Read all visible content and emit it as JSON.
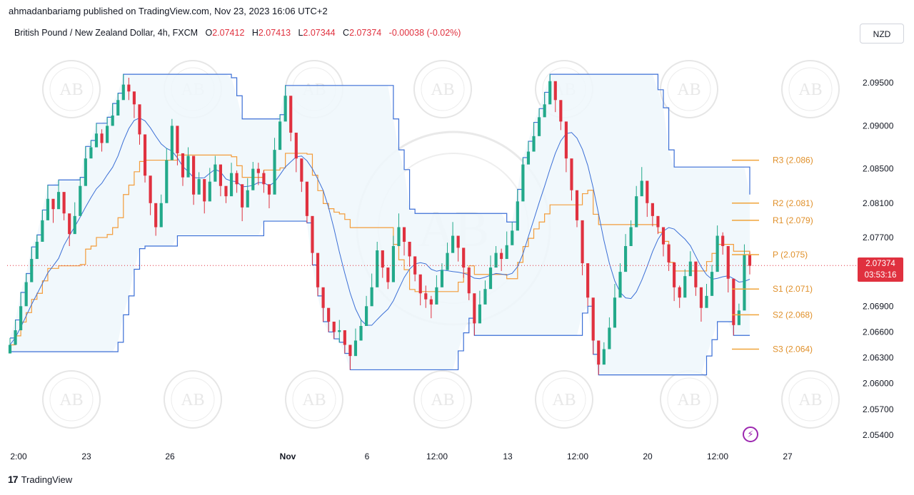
{
  "header": {
    "publisher": "ahmadanbariamg published on TradingView.com, Nov 23, 2023 16:06 UTC+2"
  },
  "legend": {
    "symbol": "British Pound / New Zealand Dollar, 4h, FXCM",
    "o_label": "O",
    "o": "2.07412",
    "h_label": "H",
    "h": "2.07413",
    "l_label": "L",
    "l": "2.07344",
    "c_label": "C",
    "c": "2.07374",
    "change": "-0.00038 (-0.02%)"
  },
  "currency_button": "NZD",
  "current_price": {
    "value": "2.07374",
    "countdown": "03:53:16"
  },
  "footer": {
    "brand": "TradingView"
  },
  "watermark_text": "AB",
  "colors": {
    "up": "#22a98a",
    "down": "#e0313f",
    "channel": "#3b6fd6",
    "mid": "#f39c3a",
    "pivot": "#f0a43a",
    "fill": "#eef7fc"
  },
  "chart_data": {
    "type": "candlestick",
    "y_axis": {
      "ticks": [
        "2.09500",
        "2.09000",
        "2.08500",
        "2.08100",
        "2.07700",
        "2.06900",
        "2.06600",
        "2.06300",
        "2.06000",
        "2.05700",
        "2.05400"
      ],
      "range": [
        2.0525,
        2.0995
      ]
    },
    "x_axis": {
      "ticks": [
        "2:00",
        "23",
        "26",
        "Nov",
        "6",
        "12:00",
        "13",
        "12:00",
        "20",
        "12:00",
        "27"
      ]
    },
    "pivot_levels": [
      {
        "name": "R3",
        "label": "R3 (2.086)",
        "value": 2.086
      },
      {
        "name": "R2",
        "label": "R2 (2.081)",
        "value": 2.081
      },
      {
        "name": "R1",
        "label": "R1 (2.079)",
        "value": 2.079
      },
      {
        "name": "P",
        "label": "P (2.075)",
        "value": 2.075
      },
      {
        "name": "S1",
        "label": "S1 (2.071)",
        "value": 2.071
      },
      {
        "name": "S2",
        "label": "S2 (2.068)",
        "value": 2.068
      },
      {
        "name": "S3",
        "label": "S3 (2.064)",
        "value": 2.064
      }
    ],
    "close_series": [
      2.0645,
      2.0662,
      2.069,
      2.0718,
      2.0745,
      2.0765,
      2.079,
      2.0815,
      2.0803,
      2.0823,
      2.0798,
      2.0774,
      2.0795,
      2.083,
      2.0862,
      2.0875,
      2.0891,
      2.088,
      2.09,
      2.0912,
      2.093,
      2.0948,
      2.094,
      2.0925,
      2.089,
      2.0842,
      2.081,
      2.0782,
      2.081,
      2.086,
      2.09,
      2.0868,
      2.084,
      2.0865,
      2.082,
      2.0838,
      2.0812,
      2.0835,
      2.0855,
      2.083,
      2.0818,
      2.0845,
      2.0832,
      2.0805,
      2.0825,
      2.085,
      2.0845,
      2.0832,
      2.082,
      2.0872,
      2.0905,
      2.0935,
      2.0892,
      2.0862,
      2.0835,
      2.0795,
      2.0752,
      2.0712,
      2.0688,
      2.0672,
      2.066,
      2.0662,
      2.0645,
      2.0632,
      2.065,
      2.0667,
      2.069,
      2.0712,
      2.0755,
      2.0735,
      2.0718,
      2.076,
      2.0782,
      2.0765,
      2.0748,
      2.0727,
      2.0705,
      2.0698,
      2.0692,
      2.0712,
      2.0732,
      2.0752,
      2.0772,
      2.0758,
      2.0735,
      2.0705,
      2.067,
      2.0692,
      2.071,
      2.0735,
      2.0752,
      2.0745,
      2.0761,
      2.0778,
      2.0812,
      2.0855,
      2.087,
      2.0888,
      2.091,
      2.0925,
      2.0952,
      2.093,
      2.0905,
      2.0862,
      2.0825,
      2.079,
      2.074,
      2.07,
      2.065,
      2.0622,
      2.064,
      2.0665,
      2.07,
      2.073,
      2.076,
      2.0782,
      2.0818,
      2.0836,
      2.081,
      2.0795,
      2.0782,
      2.0762,
      2.0741,
      2.0712,
      2.07,
      2.0725,
      2.0742,
      2.0712,
      2.0688,
      2.0702,
      2.073,
      2.0772,
      2.076,
      2.0722,
      2.0668,
      2.0685,
      2.075,
      2.0737
    ]
  }
}
